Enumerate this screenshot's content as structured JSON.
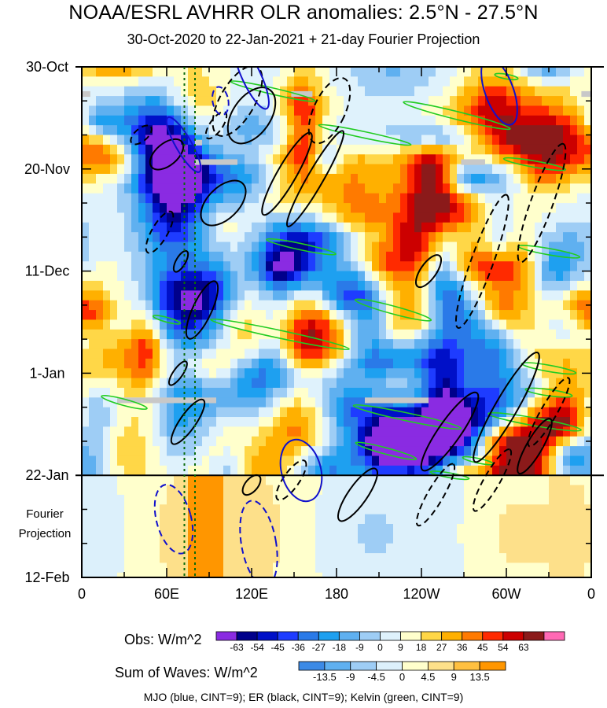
{
  "header": {
    "title": "NOAA/ESRL AVHRR OLR anomalies: 2.5°N - 27.5°N",
    "subtitle": "30-Oct-2020 to 22-Jan-2021 + 21-day Fourier Projection"
  },
  "chart_data": {
    "type": "heatmap",
    "title": "NOAA/ESRL AVHRR OLR anomalies: 2.5°N - 27.5°N",
    "subtitle": "30-Oct-2020 to 22-Jan-2021 + 21-day Fourier Projection",
    "x_axis": {
      "range_deg_east": [
        0,
        360
      ],
      "ticks": [
        {
          "lon": 0,
          "label": "0"
        },
        {
          "lon": 60,
          "label": "60E"
        },
        {
          "lon": 120,
          "label": "120E"
        },
        {
          "lon": 180,
          "label": "180"
        },
        {
          "lon": 240,
          "label": "120W"
        },
        {
          "lon": 300,
          "label": "60W"
        },
        {
          "lon": 360,
          "label": "0"
        }
      ]
    },
    "y_axis": {
      "range_days": [
        0,
        105
      ],
      "direction": "downward",
      "ticks": [
        {
          "day": 0,
          "label": "30-Oct"
        },
        {
          "day": 21,
          "label": "20-Nov"
        },
        {
          "day": 42,
          "label": "11-Dec"
        },
        {
          "day": 63,
          "label": "1-Jan"
        },
        {
          "day": 84,
          "label": "22-Jan"
        },
        {
          "day": 105,
          "label": "12-Feb"
        }
      ]
    },
    "projection_label": [
      "Fourier",
      "Projection"
    ],
    "observation_end_day": 84,
    "reference_longitudes_deg_east": [
      72.5,
      80
    ],
    "obs_colorbar": {
      "label": "Obs: W/m^2",
      "levels": [
        "-63",
        "-54",
        "-45",
        "-36",
        "-27",
        "-18",
        "-9",
        "0",
        "9",
        "18",
        "27",
        "36",
        "45",
        "54",
        "63"
      ],
      "colors": [
        "#8a2be2",
        "#00008b",
        "#0010c8",
        "#1e3cff",
        "#2a7ae8",
        "#1ea0f0",
        "#5fb0f0",
        "#9ecdf5",
        "#dff2fc",
        "#ffffcc",
        "#ffd747",
        "#ffb000",
        "#ff7a00",
        "#ff2a00",
        "#cc0000",
        "#8b1a1a",
        "#ff69b4"
      ]
    },
    "waves_colorbar": {
      "label": "Sum of Waves: W/m^2",
      "levels": [
        "-13.5",
        "-9",
        "-4.5",
        "0",
        "4.5",
        "9",
        "13.5"
      ],
      "colors": [
        "#3c8ae6",
        "#5fb0f0",
        "#9ecdf5",
        "#dcf0fb",
        "#ffffcc",
        "#fde08a",
        "#ffc040",
        "#ff9600"
      ]
    },
    "contour_legend": "MJO (blue, CINT=9); ER (black, CINT=9); Kelvin (green, CINT=9)",
    "series": [
      {
        "name": "MJO",
        "color": "#1010cc",
        "cint": 9
      },
      {
        "name": "ER",
        "color": "#000000",
        "cint": 9
      },
      {
        "name": "Kelvin",
        "color": "#22cc22",
        "cint": 9
      }
    ],
    "missing_data_color": "#c8c8c8"
  }
}
